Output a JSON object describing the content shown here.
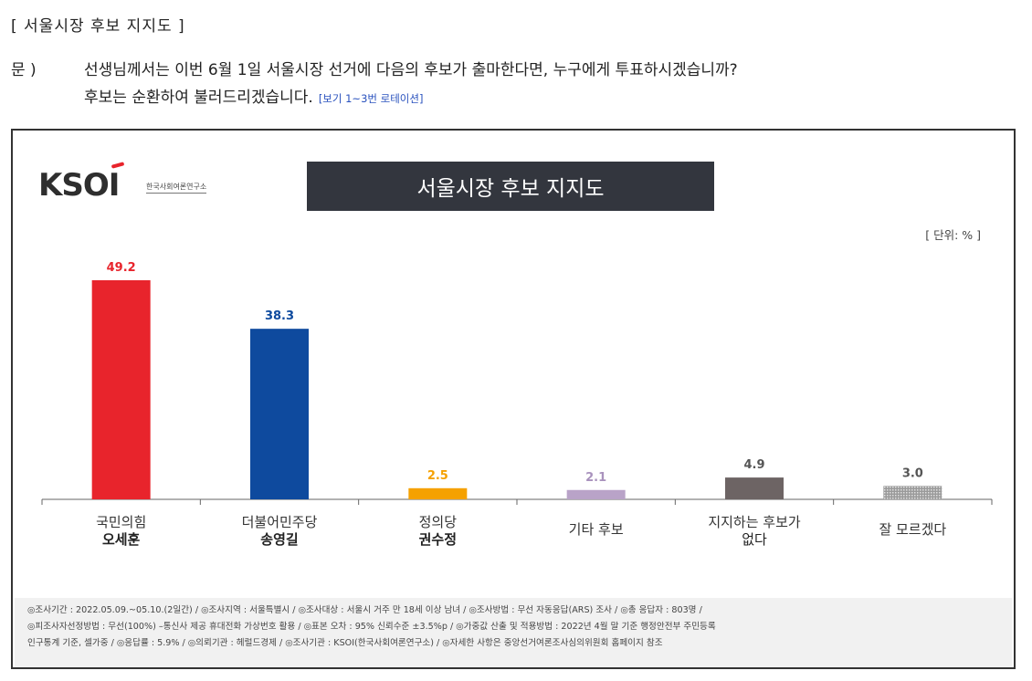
{
  "heading": "[ 서울시장 후보 지지도 ]",
  "question": {
    "label": "문 )",
    "line1": "선생님께서는 이번 6월 1일 서울시장 선거에 다음의 후보가 출마한다면, 누구에게 투표하시겠습니까?",
    "line2": "후보는 순환하여 불러드리겠습니다.",
    "note": "[보기 1~3번 로테이션]"
  },
  "logo": {
    "text": "KSOI",
    "subtitle": "한국사회여론연구소"
  },
  "unit_label": "[ 단위: % ]",
  "colors": {
    "accent_red": "#e8242c",
    "title_bg": "#33363e"
  },
  "chart_data": {
    "type": "bar",
    "title": "서울시장 후보 지지도",
    "ylim": [
      0,
      55
    ],
    "grid": false,
    "categories": [
      {
        "line1": "국민의힘",
        "line2": "오세훈"
      },
      {
        "line1": "더불어민주당",
        "line2": "송영길"
      },
      {
        "line1": "정의당",
        "line2": "권수정"
      },
      {
        "line1": "기타 후보",
        "line2": ""
      },
      {
        "line1": "지지하는 후보가",
        "line2": "없다"
      },
      {
        "line1": "잘 모르겠다",
        "line2": ""
      }
    ],
    "values": [
      49.2,
      38.3,
      2.5,
      2.1,
      4.9,
      3.0
    ],
    "value_labels": [
      "49.2",
      "38.3",
      "2.5",
      "2.1",
      "4.9",
      "3.0"
    ],
    "bar_colors": [
      "#e8242c",
      "#0e4a9e",
      "#f5a100",
      "#b9a3c8",
      "#6d6464",
      "#b5b5b5"
    ],
    "label_colors": [
      "#e8242c",
      "#0e4a9e",
      "#f5a100",
      "#a992bd",
      "#555555",
      "#555555"
    ],
    "category_line2_bold": [
      true,
      true,
      true,
      false,
      false,
      false
    ]
  },
  "footer": {
    "line1": "◎조사기간 : 2022.05.09.~05.10.(2일간) / ◎조사지역 : 서울특별시 / ◎조사대상 : 서울시 거주 만 18세 이상 남녀 / ◎조사방법 : 무선 자동응답(ARS) 조사 / ◎총 응답자 : 803명 /",
    "line2": "◎피조사자선정방법 : 무선(100%) –통신사 제공 휴대전화 가상번호 활용 / ◎표본 오차 : 95% 신뢰수준 ±3.5%p / ◎가중값 산출 및 적용방법 : 2022년 4월 말 기준 행정안전부 주민등록",
    "line3": "인구통계 기준, 셀가중 / ◎응답률 : 5.9% / ◎의뢰기관 : 헤럴드경제 / ◎조사기관 : KSOI(한국사회여론연구소) / ◎자세한 사항은 중앙선거여론조사심의위원회 홈페이지 참조"
  }
}
